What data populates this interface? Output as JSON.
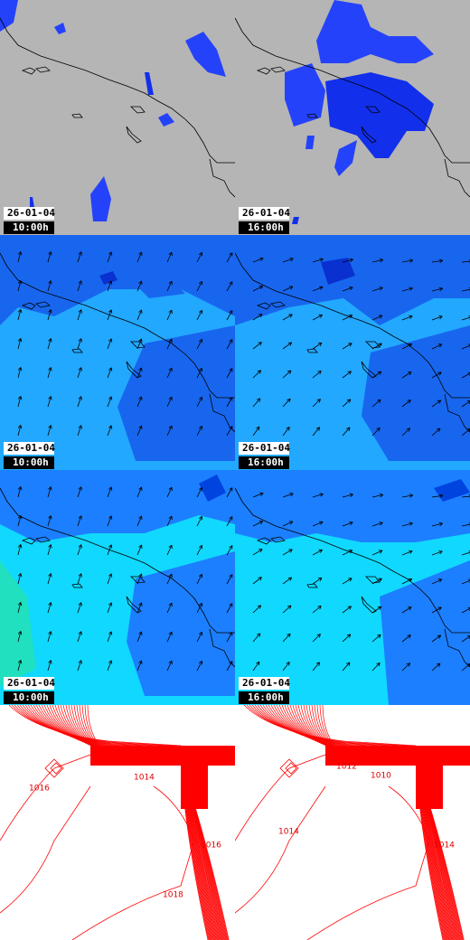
{
  "panels": [
    {
      "date": "26-01-04",
      "time": "10:00h"
    },
    {
      "date": "26-01-04",
      "time": "16:00h"
    },
    {
      "date": "26-01-04",
      "time": "10:00h"
    },
    {
      "date": "26-01-04",
      "time": "16:00h"
    },
    {
      "date": "26-01-04",
      "time": "10:00h"
    },
    {
      "date": "26-01-04",
      "time": "16:00h"
    }
  ],
  "pressure_panels": [
    {
      "labels": [
        "1016",
        "1014",
        "1016",
        "1018"
      ]
    },
    {
      "labels": [
        "1012",
        "1010",
        "1014",
        "1014"
      ]
    }
  ]
}
